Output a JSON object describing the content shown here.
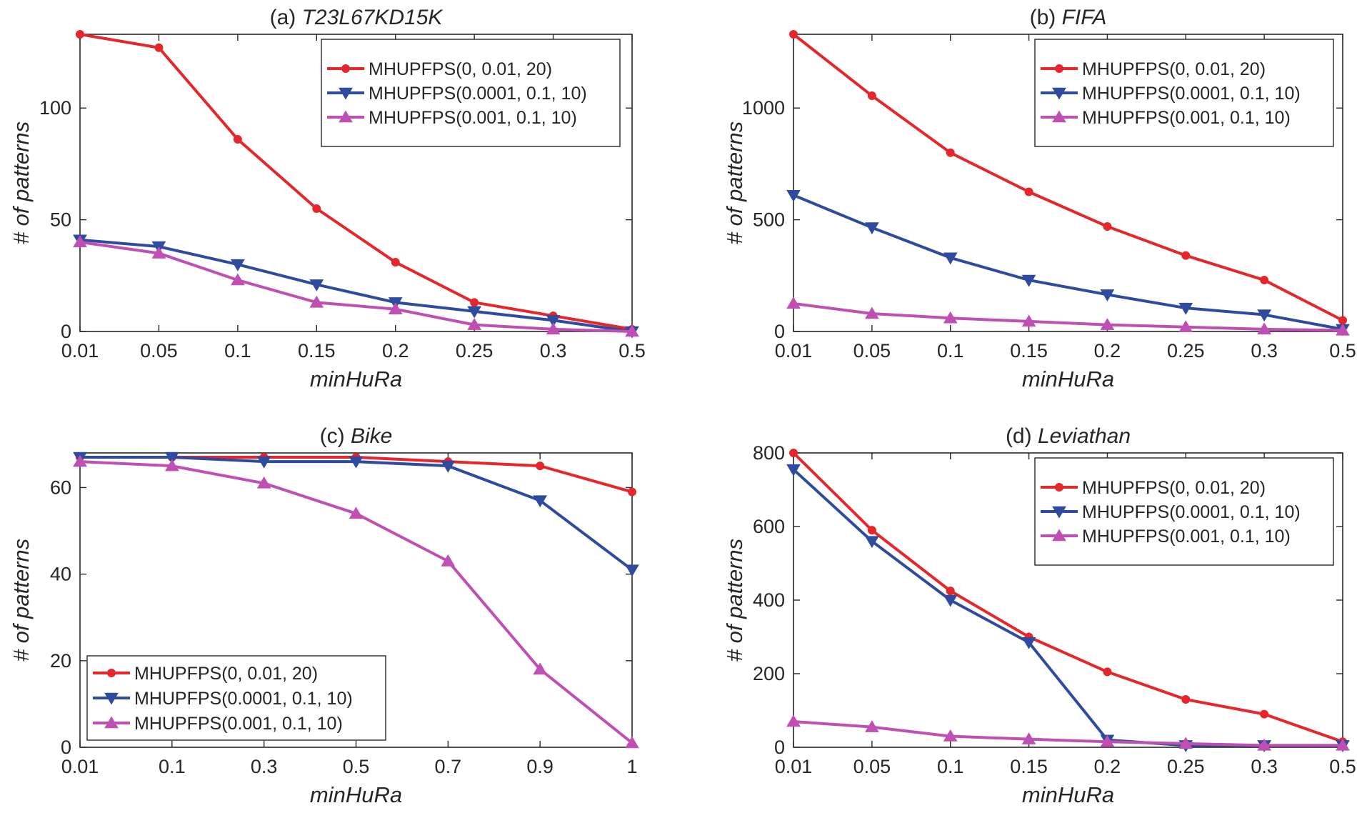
{
  "colors": {
    "red": "#e5262b",
    "blue": "#2e4b9f",
    "magenta": "#c04fb4",
    "axis": "#262626"
  },
  "chart_data": [
    {
      "type": "line",
      "title_prefix": "(a)",
      "title_name": "T23L67KD15K",
      "xlabel": "minHuRa",
      "ylabel": "# of patterns",
      "categories": [
        "0.01",
        "0.05",
        "0.1",
        "0.15",
        "0.2",
        "0.25",
        "0.3",
        "0.5"
      ],
      "ylim": [
        0,
        133
      ],
      "yticks": [
        "0",
        "50",
        "100"
      ],
      "ytick_values": [
        0,
        50,
        100
      ],
      "legend_position": "top-right",
      "series": [
        {
          "name": "MHUPFPS(0, 0.01, 20)",
          "color": "red",
          "marker": "dot",
          "values": [
            133,
            127,
            86,
            55,
            31,
            13,
            7,
            1
          ]
        },
        {
          "name": "MHUPFPS(0.0001, 0.1, 10)",
          "color": "blue",
          "marker": "triangle-down",
          "values": [
            41,
            38,
            30,
            21,
            13,
            9,
            5,
            0
          ]
        },
        {
          "name": "MHUPFPS(0.001, 0.1, 10)",
          "color": "magenta",
          "marker": "triangle-up",
          "values": [
            40,
            35,
            23,
            13,
            10,
            3,
            1,
            0
          ]
        }
      ]
    },
    {
      "type": "line",
      "title_prefix": "(b)",
      "title_name": "FIFA",
      "xlabel": "minHuRa",
      "ylabel": "# of patterns",
      "categories": [
        "0.01",
        "0.05",
        "0.1",
        "0.15",
        "0.2",
        "0.25",
        "0.3",
        "0.5"
      ],
      "ylim": [
        0,
        1330
      ],
      "yticks": [
        "0",
        "500",
        "1000"
      ],
      "ytick_values": [
        0,
        500,
        1000
      ],
      "legend_position": "top-right",
      "series": [
        {
          "name": "MHUPFPS(0, 0.01, 20)",
          "color": "red",
          "marker": "dot",
          "values": [
            1330,
            1055,
            800,
            625,
            470,
            340,
            230,
            50
          ]
        },
        {
          "name": "MHUPFPS(0.0001, 0.1, 10)",
          "color": "blue",
          "marker": "triangle-down",
          "values": [
            610,
            465,
            330,
            230,
            165,
            105,
            75,
            10
          ]
        },
        {
          "name": "MHUPFPS(0.001, 0.1, 10)",
          "color": "magenta",
          "marker": "triangle-up",
          "values": [
            125,
            80,
            60,
            45,
            30,
            20,
            10,
            5
          ]
        }
      ]
    },
    {
      "type": "line",
      "title_prefix": "(c)",
      "title_name": "Bike",
      "xlabel": "minHuRa",
      "ylabel": "# of patterns",
      "categories": [
        "0.01",
        "0.1",
        "0.3",
        "0.5",
        "0.7",
        "0.9",
        "1"
      ],
      "ylim": [
        0,
        68
      ],
      "yticks": [
        "0",
        "20",
        "40",
        "60"
      ],
      "ytick_values": [
        0,
        20,
        40,
        60
      ],
      "legend_position": "bottom-left",
      "series": [
        {
          "name": "MHUPFPS(0, 0.01, 20)",
          "color": "red",
          "marker": "dot",
          "values": [
            67,
            67,
            67,
            67,
            66,
            65,
            59
          ]
        },
        {
          "name": "MHUPFPS(0.0001, 0.1, 10)",
          "color": "blue",
          "marker": "triangle-down",
          "values": [
            67,
            67,
            66,
            66,
            65,
            57,
            41
          ]
        },
        {
          "name": "MHUPFPS(0.001, 0.1, 10)",
          "color": "magenta",
          "marker": "triangle-up",
          "values": [
            66,
            65,
            61,
            54,
            43,
            18,
            1
          ]
        }
      ]
    },
    {
      "type": "line",
      "title_prefix": "(d)",
      "title_name": "Leviathan",
      "xlabel": "minHuRa",
      "ylabel": "# of patterns",
      "categories": [
        "0.01",
        "0.05",
        "0.1",
        "0.15",
        "0.2",
        "0.25",
        "0.3",
        "0.5"
      ],
      "ylim": [
        0,
        800
      ],
      "yticks": [
        "0",
        "200",
        "400",
        "600",
        "800"
      ],
      "ytick_values": [
        0,
        200,
        400,
        600,
        800
      ],
      "legend_position": "top-right",
      "series": [
        {
          "name": "MHUPFPS(0, 0.01, 20)",
          "color": "red",
          "marker": "dot",
          "values": [
            800,
            590,
            425,
            300,
            205,
            130,
            90,
            15
          ]
        },
        {
          "name": "MHUPFPS(0.0001, 0.1, 10)",
          "color": "blue",
          "marker": "triangle-down",
          "values": [
            755,
            560,
            400,
            285,
            20,
            5,
            5,
            5
          ]
        },
        {
          "name": "MHUPFPS(0.001, 0.1, 10)",
          "color": "magenta",
          "marker": "triangle-up",
          "values": [
            70,
            55,
            30,
            22,
            15,
            10,
            5,
            5
          ]
        }
      ]
    }
  ]
}
